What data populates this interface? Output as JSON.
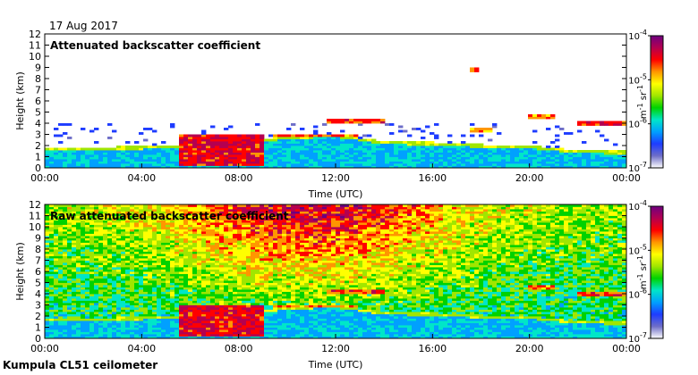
{
  "date_label": "17 Aug 2017",
  "site_label": "Kumpula CL51 ceilometer",
  "colors": {
    "colormap": [
      "#ffffff",
      "#6e6ec8",
      "#1e3cff",
      "#00a0ff",
      "#00e6c8",
      "#00d200",
      "#a0e600",
      "#ffff00",
      "#ff9600",
      "#ff0000",
      "#b40050",
      "#6e0080"
    ]
  },
  "chart_data": [
    {
      "type": "heatmap",
      "title": "Attenuated backscatter coefficient",
      "xlabel": "Time (UTC)",
      "ylabel": "Height (km)",
      "x_ticks": [
        "00:00",
        "04:00",
        "08:00",
        "12:00",
        "16:00",
        "20:00",
        "00:00"
      ],
      "xlim": [
        0,
        24
      ],
      "y_ticks": [
        "0",
        "1",
        "2",
        "3",
        "4",
        "5",
        "6",
        "7",
        "8",
        "9",
        "10",
        "11",
        "12"
      ],
      "ylim": [
        0,
        12
      ],
      "colorbar": {
        "scale": "log",
        "range": [
          1e-07,
          0.0001
        ],
        "base": "10",
        "exponents": [
          "-4",
          "-5",
          "-6",
          "-7"
        ],
        "unit_m": "m",
        "unit_sr": "sr",
        "unit_exp": "-1"
      },
      "features": {
        "boundary_layer_top_km": [
          [
            0,
            1.9
          ],
          [
            3,
            1.9
          ],
          [
            5,
            2.0
          ],
          [
            7,
            2.4
          ],
          [
            8.5,
            2.3
          ],
          [
            10,
            2.9
          ],
          [
            12,
            3.0
          ],
          [
            14,
            2.4
          ],
          [
            16,
            2.3
          ],
          [
            18,
            2.1
          ],
          [
            20,
            2.0
          ],
          [
            22,
            1.6
          ],
          [
            24,
            1.5
          ]
        ],
        "cloud_layers": [
          {
            "t_start": 5.5,
            "t_end": 9.0,
            "base_km": 0.2,
            "top_km": 3.0,
            "intensity": 0.95
          },
          {
            "t_start": 9.5,
            "t_end": 13.0,
            "base_km": 2.8,
            "top_km": 3.1,
            "intensity": 0.85
          },
          {
            "t_start": 11.6,
            "t_end": 14.0,
            "base_km": 4.0,
            "top_km": 4.3,
            "intensity": 0.9
          },
          {
            "t_start": 17.5,
            "t_end": 18.5,
            "base_km": 3.3,
            "top_km": 3.6,
            "intensity": 0.8
          },
          {
            "t_start": 20.0,
            "t_end": 21.0,
            "base_km": 4.5,
            "top_km": 4.8,
            "intensity": 0.85
          },
          {
            "t_start": 22.0,
            "t_end": 24.0,
            "base_km": 3.8,
            "top_km": 4.2,
            "intensity": 0.9
          },
          {
            "t_start": 17.6,
            "t_end": 17.9,
            "base_km": 8.6,
            "top_km": 9.0,
            "intensity": 0.9
          }
        ]
      }
    },
    {
      "type": "heatmap",
      "title": "Raw attenuated backscatter coefficient",
      "xlabel": "Time (UTC)",
      "ylabel": "Height (km)",
      "x_ticks": [
        "00:00",
        "04:00",
        "08:00",
        "12:00",
        "16:00",
        "20:00",
        "00:00"
      ],
      "xlim": [
        0,
        24
      ],
      "y_ticks": [
        "0",
        "1",
        "2",
        "3",
        "4",
        "5",
        "6",
        "7",
        "8",
        "9",
        "10",
        "11",
        "12"
      ],
      "ylim": [
        0,
        12
      ],
      "colorbar": {
        "scale": "log",
        "range": [
          1e-07,
          0.0001
        ],
        "base": "10",
        "exponents": [
          "-4",
          "-5",
          "-6",
          "-7"
        ],
        "unit_m": "m",
        "unit_sr": "sr",
        "unit_exp": "-1"
      },
      "features": {
        "noise_peak_hour": 11,
        "boundary_layer_top_km": [
          [
            0,
            1.9
          ],
          [
            3,
            1.9
          ],
          [
            5,
            2.0
          ],
          [
            7,
            2.4
          ],
          [
            8.5,
            2.3
          ],
          [
            10,
            2.9
          ],
          [
            12,
            3.0
          ],
          [
            14,
            2.4
          ],
          [
            16,
            2.3
          ],
          [
            18,
            2.1
          ],
          [
            20,
            2.0
          ],
          [
            22,
            1.6
          ],
          [
            24,
            1.5
          ]
        ],
        "cloud_layers": [
          {
            "t_start": 5.5,
            "t_end": 9.0,
            "base_km": 0.2,
            "top_km": 3.0,
            "intensity": 0.95
          },
          {
            "t_start": 9.5,
            "t_end": 13.0,
            "base_km": 2.8,
            "top_km": 3.1,
            "intensity": 0.85
          },
          {
            "t_start": 11.6,
            "t_end": 14.0,
            "base_km": 4.0,
            "top_km": 4.3,
            "intensity": 0.9
          },
          {
            "t_start": 20.0,
            "t_end": 21.0,
            "base_km": 4.5,
            "top_km": 4.8,
            "intensity": 0.85
          },
          {
            "t_start": 22.0,
            "t_end": 24.0,
            "base_km": 3.8,
            "top_km": 4.2,
            "intensity": 0.9
          }
        ]
      }
    }
  ]
}
